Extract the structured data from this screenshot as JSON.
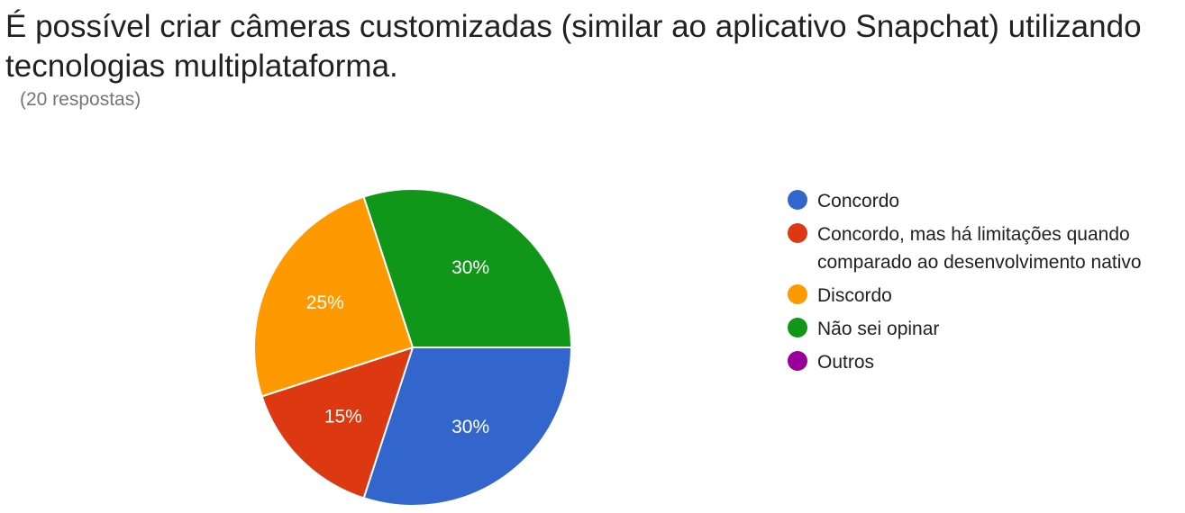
{
  "question": {
    "title": "É possível criar câmeras customizadas (similar ao aplicativo Snapchat) utilizando tecnologias multiplataforma.",
    "response_count": "(20 respostas)"
  },
  "chart_data": {
    "type": "pie",
    "title": "É possível criar câmeras customizadas (similar ao aplicativo Snapchat) utilizando tecnologias multiplataforma.",
    "categories": [
      "Concordo",
      "Concordo, mas há limitações quando comparado ao desenvolvimento nativo",
      "Discordo",
      "Não sei opinar",
      "Outros"
    ],
    "values": [
      30,
      15,
      25,
      30,
      0
    ],
    "value_labels": [
      "30%",
      "15%",
      "25%",
      "30%",
      ""
    ],
    "colors": [
      "#3366cc",
      "#dc3912",
      "#ff9900",
      "#109618",
      "#990099"
    ],
    "legend_position": "right",
    "start_angle_deg": 90,
    "direction": "clockwise"
  }
}
